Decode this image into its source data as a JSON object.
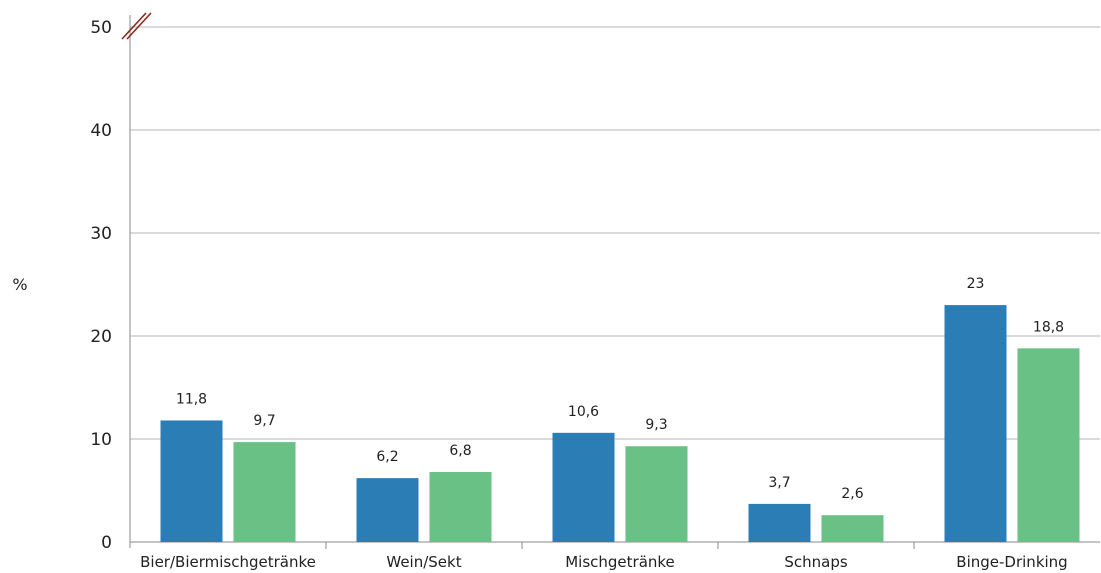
{
  "chart_data": {
    "type": "bar",
    "title": "",
    "xlabel": "",
    "ylabel": "%",
    "ylim": [
      0,
      50
    ],
    "yticks": [
      "0",
      "10",
      "20",
      "30",
      "40",
      "50"
    ],
    "grid": true,
    "axis_break": true,
    "categories": [
      "Bier/Biermischgetränke",
      "Wein/Sekt",
      "Mischgetränke",
      "Schnaps",
      "Binge-Drinking"
    ],
    "series": [
      {
        "color": "#2a7db5",
        "values": [
          11.8,
          6.2,
          10.6,
          3.7,
          23
        ],
        "labels": [
          "11,8",
          "6,2",
          "10,6",
          "3,7",
          "23"
        ]
      },
      {
        "color": "#6ac186",
        "values": [
          9.7,
          6.8,
          9.3,
          2.6,
          18.8
        ],
        "labels": [
          "9,7",
          "6,8",
          "9,3",
          "2,6",
          "18,8"
        ]
      }
    ],
    "colors": {
      "grid": "#b5b5b5",
      "axis": "#888888",
      "break": "#8b2a1a"
    }
  }
}
